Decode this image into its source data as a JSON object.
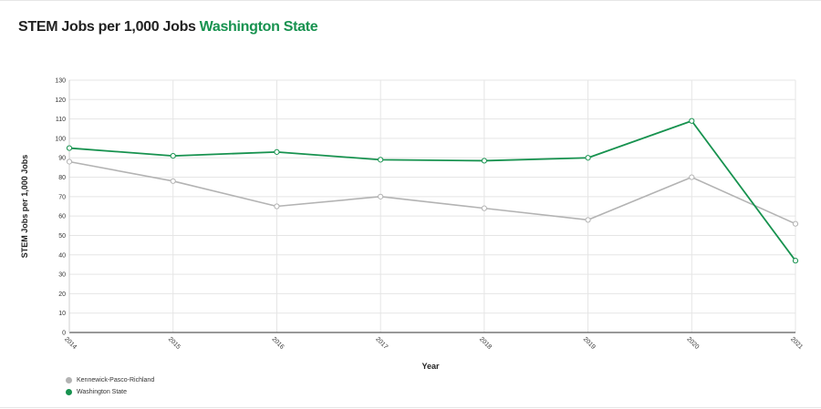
{
  "header": {
    "title_main": "STEM Jobs per 1,000 Jobs",
    "title_accent": "Washington State"
  },
  "colors": {
    "washington": "#17924f",
    "kennewick": "#b3b3b3",
    "grid": "#e5e5e5",
    "title_accent": "#17924f"
  },
  "chart_data": {
    "type": "line",
    "categories": [
      "2014",
      "2015",
      "2016",
      "2017",
      "2018",
      "2019",
      "2020",
      "2021"
    ],
    "series": [
      {
        "name": "Kennewick-Pasco-Richland",
        "color": "#b3b3b3",
        "values": [
          88,
          78,
          65,
          70,
          64,
          58,
          80,
          56
        ]
      },
      {
        "name": "Washington State",
        "color": "#17924f",
        "values": [
          95,
          91,
          93,
          89,
          88.5,
          90,
          109,
          37
        ]
      }
    ],
    "xlabel": "Year",
    "ylabel": "STEM Jobs per 1,000 Jobs",
    "ylim": [
      0,
      130
    ],
    "yticks": [
      0,
      10,
      20,
      30,
      40,
      50,
      60,
      70,
      80,
      90,
      100,
      110,
      120,
      130
    ],
    "grid": true,
    "legend_position": "bottom-left"
  }
}
